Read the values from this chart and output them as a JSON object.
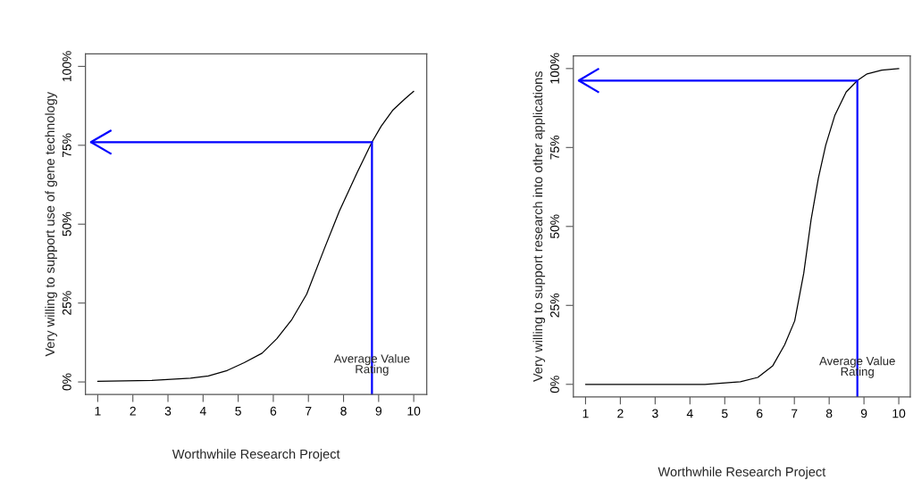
{
  "chart_data": [
    {
      "type": "line",
      "xlabel": "Worthwhile Research Project",
      "ylabel": "Very willing to support use of gene technology",
      "x": [
        1,
        2.54,
        3.64,
        4.15,
        4.66,
        5.17,
        5.68,
        6.1,
        6.53,
        6.95,
        7.46,
        7.88,
        8.39,
        8.81,
        9.07,
        9.41,
        9.75,
        10
      ],
      "series": [
        {
          "color": "#000000",
          "values": [
            0.2,
            0.5,
            1.2,
            1.9,
            3.5,
            6.1,
            9.1,
            13.7,
            19.8,
            27.8,
            42.4,
            54.1,
            66.4,
            76.0,
            81,
            86.2,
            89.7,
            92.1
          ]
        }
      ],
      "xlim": [
        0.65,
        10.37
      ],
      "xticks": [
        1,
        2,
        3,
        4,
        5,
        6,
        7,
        8,
        9,
        10
      ],
      "ylim": [
        -4,
        104
      ],
      "yticks": [
        {
          "value": 0,
          "label": "0%"
        },
        {
          "value": 25,
          "label": "25%"
        },
        {
          "value": 50,
          "label": "50%"
        },
        {
          "value": 75,
          "label": "75%"
        },
        {
          "value": 100,
          "label": "100%"
        }
      ],
      "ref_lines": [
        {
          "axis": "x",
          "value": 8.81,
          "label": "Average Value\nRating",
          "color": "#0000ff"
        },
        {
          "axis": "y",
          "value": 76.0,
          "color": "#0000ff"
        }
      ],
      "grid": false
    },
    {
      "type": "line",
      "xlabel": "Worthwhile Research Project",
      "ylabel": "Very willing to support research into other applications",
      "x": [
        1,
        4.43,
        5.45,
        5.95,
        6.38,
        6.72,
        7.01,
        7.27,
        7.48,
        7.69,
        7.9,
        8.16,
        8.49,
        8.81,
        9.09,
        9.51,
        10
      ],
      "series": [
        {
          "color": "#000000",
          "values": [
            0,
            0,
            0.8,
            2.2,
            5.9,
            12.5,
            20.1,
            35.2,
            52.1,
            65.3,
            75.7,
            85.1,
            92.6,
            96.2,
            98.3,
            99.5,
            100
          ]
        }
      ],
      "xlim": [
        0.65,
        10.33
      ],
      "xticks": [
        1,
        2,
        3,
        4,
        5,
        6,
        7,
        8,
        9,
        10
      ],
      "ylim": [
        -4,
        104
      ],
      "yticks": [
        {
          "value": 0,
          "label": "0%"
        },
        {
          "value": 25,
          "label": "25%"
        },
        {
          "value": 50,
          "label": "50%"
        },
        {
          "value": 75,
          "label": "75%"
        },
        {
          "value": 100,
          "label": "100%"
        }
      ],
      "ref_lines": [
        {
          "axis": "x",
          "value": 8.81,
          "label": "Average Value\nRating",
          "color": "#0000ff"
        },
        {
          "axis": "y",
          "value": 96.2,
          "color": "#0000ff"
        }
      ],
      "grid": false
    }
  ]
}
